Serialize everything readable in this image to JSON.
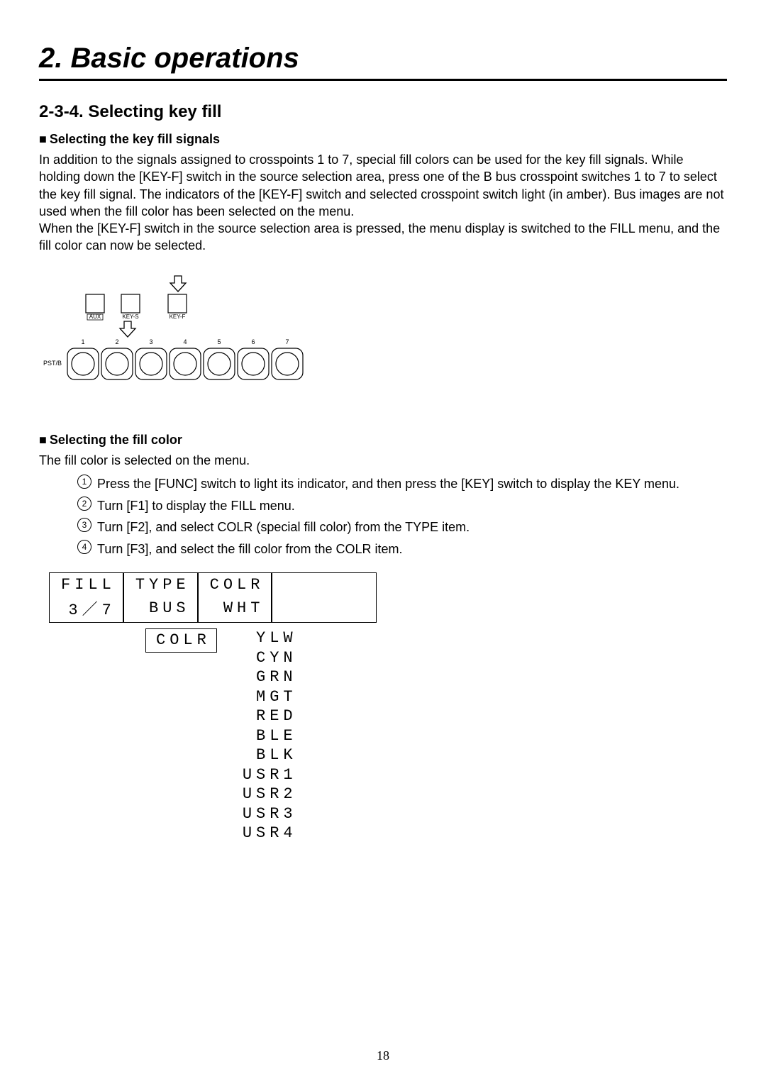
{
  "chapter_title": "2. Basic operations",
  "section_title": "2-3-4. Selecting key fill",
  "sub1_marker": "■",
  "sub1_title": "Selecting the key fill signals",
  "para1": "In addition to the signals assigned to crosspoints 1 to 7, special fill colors can be used for the key fill signals. While holding down the [KEY-F] switch in the source selection area, press one of the B bus crosspoint switches 1 to 7 to select the key fill signal. The indicators of the [KEY-F] switch and selected crosspoint switch light (in amber). Bus images are not used when the fill color has been selected on the menu.",
  "para2": "When the [KEY-F] switch in the source selection area is pressed, the menu display is switched to the FILL menu, and the fill color can now be selected.",
  "panel": {
    "top_buttons": [
      "AUX",
      "KEY-S",
      "KEY-F"
    ],
    "row_label": "PST/B",
    "row_numbers": [
      "1",
      "2",
      "3",
      "4",
      "5",
      "6",
      "7"
    ]
  },
  "sub2_marker": "■",
  "sub2_title": "Selecting the fill color",
  "para3": "The fill color is selected on the menu.",
  "steps": [
    "Press the [FUNC] switch to light its indicator, and then press the [KEY] switch to display the KEY menu.",
    "Turn [F1] to display the FILL menu.",
    "Turn [F2], and select COLR (special fill color) from the TYPE item.",
    "Turn [F3], and select the fill color from the COLR item."
  ],
  "lcd": {
    "r1c1": "FILL",
    "r1c2": "TYPE",
    "r1c3": "COLR",
    "r2c1": "3／7",
    "r2c2": "BUS",
    "r2c3": "WHT"
  },
  "boxed_value": "COLR",
  "color_options": [
    "YLW",
    "CYN",
    "GRN",
    "MGT",
    "RED",
    "BLE",
    "BLK",
    "USR1",
    "USR2",
    "USR3",
    "USR4"
  ],
  "page_number": "18"
}
